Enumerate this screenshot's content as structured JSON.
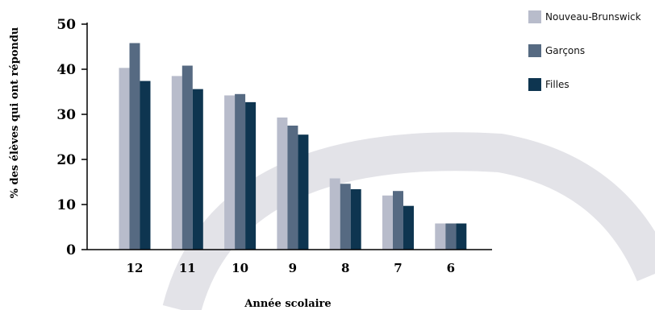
{
  "colors": {
    "nb": "#b8bccb",
    "garcons": "#566a82",
    "filles": "#0e3550",
    "arc": "#e3e3e8",
    "axis": "#000000"
  },
  "chart_data": {
    "type": "bar",
    "xlabel": "Année scolaire",
    "ylabel": "% des élèves qui ont répondu",
    "categories": [
      "12",
      "11",
      "10",
      "9",
      "8",
      "7",
      "6"
    ],
    "ylim": [
      0,
      50
    ],
    "yticks": [
      0,
      10,
      20,
      30,
      40,
      50
    ],
    "grid": false,
    "legend_position": "top-right",
    "series": [
      {
        "name": "Nouveau-Brunswick",
        "color": "#b8bccb",
        "values": [
          40.3,
          38.5,
          34.2,
          29.3,
          15.8,
          12.0,
          5.8
        ]
      },
      {
        "name": "Garçons",
        "color": "#566a82",
        "values": [
          45.8,
          40.8,
          34.5,
          27.5,
          14.6,
          13.0,
          5.8
        ]
      },
      {
        "name": "Filles",
        "color": "#0e3550",
        "values": [
          37.4,
          35.6,
          32.7,
          25.5,
          13.4,
          9.7,
          5.8
        ]
      }
    ]
  }
}
